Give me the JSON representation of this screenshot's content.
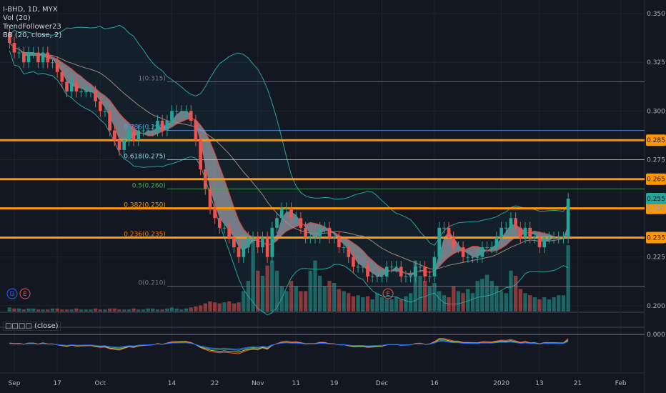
{
  "legend": {
    "symbol_line": "I-BHD, 1D, MYX",
    "vol": "Vol (20)",
    "trend": "TrendFollower23",
    "bb": "BB (20, close, 2)"
  },
  "indicator_title": "□□□□ (close)",
  "event_markers": {
    "d": "D",
    "e": "E"
  },
  "chart_data": {
    "type": "candlestick",
    "title": "I-BHD, 1D, MYX",
    "ylim": [
      0.197,
      0.357
    ],
    "y_ticks": [
      "0.350",
      "0.325",
      "0.300",
      "0.275",
      "0.250",
      "0.225",
      "0.200"
    ],
    "y_tick_values": [
      0.35,
      0.325,
      0.3,
      0.275,
      0.25,
      0.225,
      0.2
    ],
    "x_ticks": [
      "Sep",
      "17",
      "Oct",
      "14",
      "22",
      "Nov",
      "11",
      "19",
      "Dec",
      "16",
      "2020",
      "13",
      "21",
      "Feb"
    ],
    "x_tick_index": [
      1,
      10,
      19,
      34,
      43,
      52,
      60,
      68,
      78,
      89,
      103,
      111,
      119,
      128
    ],
    "last_price": 0.255,
    "horizontal_levels": [
      {
        "value": 0.285,
        "label": "0.285",
        "color": "#ff9800"
      },
      {
        "value": 0.265,
        "label": "0.265",
        "color": "#ff9800"
      },
      {
        "value": 0.25,
        "label": "0.250",
        "color": "#ff9800"
      },
      {
        "value": 0.235,
        "label": "0.235",
        "color": "#ff9800"
      }
    ],
    "fibonacci": [
      {
        "ratio": "1",
        "value": 0.315,
        "label": "1(0.315)"
      },
      {
        "ratio": "0.786",
        "value": 0.29,
        "label": "0.786(0.290)"
      },
      {
        "ratio": "0.618",
        "value": 0.275,
        "label": "0.618(0.275)"
      },
      {
        "ratio": "0.5",
        "value": 0.26,
        "label": "0.5(0.260)"
      },
      {
        "ratio": "0.382",
        "value": 0.25,
        "label": "0.382(0.250)"
      },
      {
        "ratio": "0.236",
        "value": 0.235,
        "label": "0.236(0.235)"
      },
      {
        "ratio": "0",
        "value": 0.21,
        "label": "0(0.210)"
      }
    ],
    "closes": [
      0.335,
      0.33,
      0.33,
      0.325,
      0.33,
      0.33,
      0.325,
      0.33,
      0.325,
      0.325,
      0.32,
      0.315,
      0.31,
      0.315,
      0.31,
      0.31,
      0.31,
      0.31,
      0.305,
      0.3,
      0.3,
      0.29,
      0.285,
      0.28,
      0.285,
      0.29,
      0.285,
      0.29,
      0.29,
      0.29,
      0.29,
      0.295,
      0.29,
      0.295,
      0.3,
      0.3,
      0.3,
      0.3,
      0.295,
      0.285,
      0.27,
      0.26,
      0.25,
      0.245,
      0.24,
      0.24,
      0.235,
      0.23,
      0.225,
      0.23,
      0.235,
      0.235,
      0.23,
      0.235,
      0.225,
      0.24,
      0.245,
      0.25,
      0.25,
      0.245,
      0.245,
      0.24,
      0.235,
      0.235,
      0.235,
      0.24,
      0.24,
      0.235,
      0.235,
      0.23,
      0.23,
      0.225,
      0.22,
      0.22,
      0.22,
      0.215,
      0.215,
      0.215,
      0.215,
      0.22,
      0.22,
      0.22,
      0.215,
      0.215,
      0.215,
      0.22,
      0.22,
      0.215,
      0.215,
      0.225,
      0.24,
      0.24,
      0.235,
      0.23,
      0.23,
      0.225,
      0.225,
      0.225,
      0.225,
      0.23,
      0.23,
      0.23,
      0.235,
      0.24,
      0.24,
      0.245,
      0.24,
      0.235,
      0.24,
      0.235,
      0.235,
      0.23,
      0.235,
      0.235,
      0.235,
      0.235,
      0.235,
      0.255
    ],
    "volumes": [
      4,
      3,
      3,
      2,
      3,
      3,
      2,
      2,
      2,
      3,
      3,
      2,
      2,
      2,
      3,
      2,
      2,
      2,
      3,
      2,
      2,
      3,
      3,
      2,
      2,
      2,
      3,
      2,
      2,
      3,
      3,
      2,
      2,
      3,
      4,
      3,
      2,
      3,
      4,
      5,
      6,
      8,
      10,
      9,
      8,
      9,
      10,
      8,
      9,
      20,
      30,
      70,
      40,
      35,
      45,
      50,
      40,
      25,
      20,
      30,
      25,
      20,
      20,
      40,
      50,
      35,
      25,
      30,
      28,
      22,
      20,
      18,
      15,
      16,
      14,
      15,
      12,
      18,
      14,
      12,
      12,
      14,
      12,
      15,
      18,
      50,
      35,
      30,
      25,
      28,
      20,
      16,
      14,
      25,
      20,
      18,
      22,
      18,
      30,
      32,
      36,
      30,
      25,
      20,
      18,
      40,
      35,
      22,
      18,
      16,
      14,
      12,
      14,
      12,
      14,
      16,
      16,
      65
    ],
    "bb_series": [
      "upper",
      "basis",
      "lower"
    ],
    "oscillator_ticks": [
      "0.000"
    ]
  }
}
